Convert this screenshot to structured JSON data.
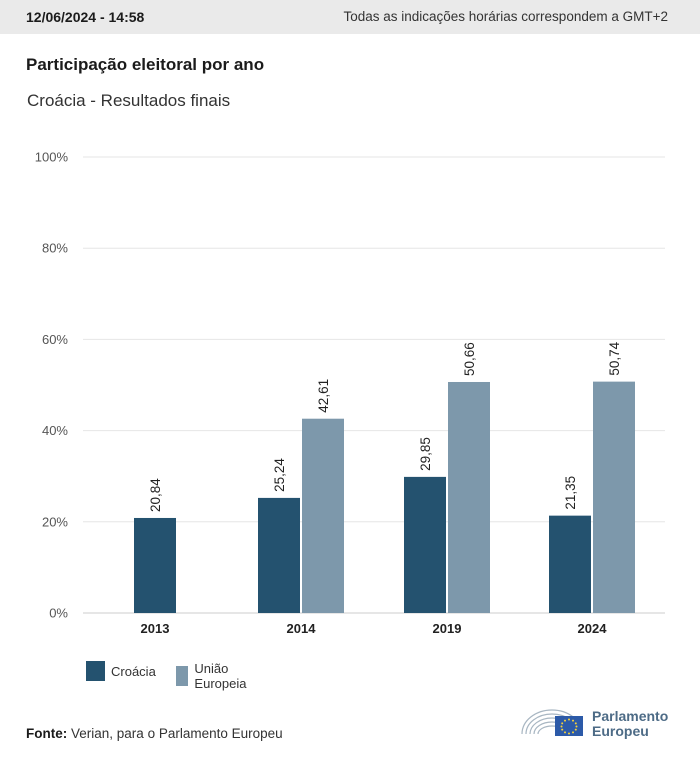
{
  "header": {
    "datetime": "12/06/2024 - 14:58",
    "timezone_note": "Todas as indicações horárias correspondem a GMT+2"
  },
  "title": "Participação eleitoral por ano",
  "subtitle": "Croácia - Resultados finais",
  "chart_data": {
    "type": "bar",
    "categories": [
      "2013",
      "2014",
      "2019",
      "2024"
    ],
    "series": [
      {
        "name": "Croácia",
        "color": "#24526f",
        "values": [
          20.84,
          25.24,
          29.85,
          21.35
        ],
        "labels": [
          "20,84",
          "25,24",
          "29,85",
          "21,35"
        ]
      },
      {
        "name": "União Europeia",
        "color": "#7d98ab",
        "values": [
          null,
          42.61,
          50.66,
          50.74
        ],
        "labels": [
          null,
          "42,61",
          "50,66",
          "50,74"
        ]
      }
    ],
    "ylim": [
      0,
      100
    ],
    "yticks": [
      "0%",
      "20%",
      "40%",
      "60%",
      "80%",
      "100%"
    ],
    "grid": true,
    "legend_position": "bottom-left"
  },
  "source": {
    "label": "Fonte:",
    "text": "Verian, para o Parlamento Europeu"
  },
  "logo": {
    "line1": "Parlamento",
    "line2": "Europeu"
  }
}
